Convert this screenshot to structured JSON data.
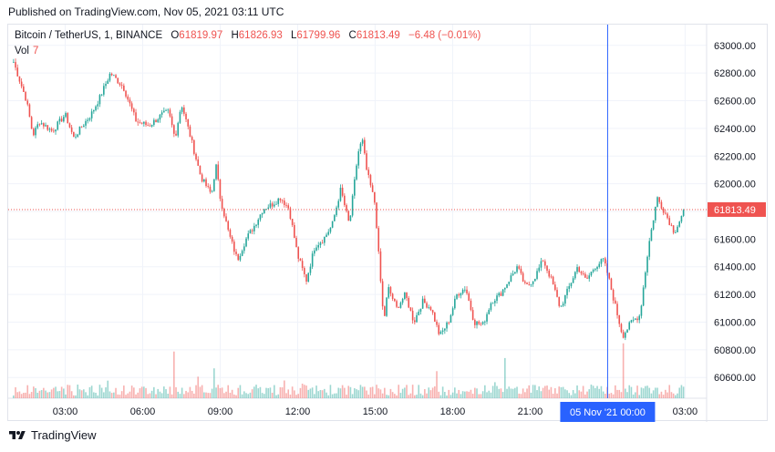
{
  "header": {
    "published": "Published on TradingView.com, Nov 05, 2021 03:11 UTC"
  },
  "legend": {
    "symbol": "Bitcoin / TetherUS, 1, BINANCE",
    "open_label": "O",
    "open": "61819.97",
    "high_label": "H",
    "high": "61826.93",
    "low_label": "L",
    "low": "61799.96",
    "close_label": "C",
    "close": "61813.49",
    "change": "−6.48 (−0.01%)",
    "volume_label": "Vol",
    "volume": "7"
  },
  "footer": {
    "brand": "TradingView"
  },
  "colors": {
    "up": "#26a69a",
    "down": "#ef5350",
    "crosshair": "#2962ff",
    "last_price_line": "#ef5350",
    "grid": "#f0f3fa",
    "axis_text": "#131722"
  },
  "chart_data": {
    "type": "candlestick",
    "ylim": [
      60450,
      63150
    ],
    "y_ticks": [
      "63000.00",
      "62800.00",
      "62600.00",
      "62400.00",
      "62200.00",
      "62000.00",
      "61800.00",
      "61600.00",
      "61400.00",
      "61200.00",
      "61000.00",
      "60800.00",
      "60600.00"
    ],
    "x_ticks": [
      "03:00",
      "06:00",
      "09:00",
      "12:00",
      "15:00",
      "18:00",
      "21:00",
      "00:00",
      "03:00"
    ],
    "crosshair_label": "05 Nov '21   00:00",
    "last_price": 61813.49,
    "last_price_label": "61813.49",
    "close_path": [
      [
        "01:00",
        62880
      ],
      [
        "01:30",
        62600
      ],
      [
        "01:45",
        62350
      ],
      [
        "02:00",
        62450
      ],
      [
        "02:30",
        62380
      ],
      [
        "03:00",
        62500
      ],
      [
        "03:20",
        62330
      ],
      [
        "03:40",
        62420
      ],
      [
        "04:00",
        62500
      ],
      [
        "04:20",
        62620
      ],
      [
        "04:45",
        62800
      ],
      [
        "05:15",
        62700
      ],
      [
        "05:45",
        62450
      ],
      [
        "06:15",
        62420
      ],
      [
        "06:45",
        62500
      ],
      [
        "07:00",
        62520
      ],
      [
        "07:15",
        62330
      ],
      [
        "07:30",
        62580
      ],
      [
        "07:50",
        62350
      ],
      [
        "08:15",
        62050
      ],
      [
        "08:40",
        61920
      ],
      [
        "08:50",
        62140
      ],
      [
        "09:00",
        61900
      ],
      [
        "09:20",
        61640
      ],
      [
        "09:40",
        61450
      ],
      [
        "10:00",
        61600
      ],
      [
        "10:20",
        61700
      ],
      [
        "10:40",
        61820
      ],
      [
        "11:00",
        61850
      ],
      [
        "11:20",
        61900
      ],
      [
        "11:40",
        61820
      ],
      [
        "12:00",
        61480
      ],
      [
        "12:20",
        61300
      ],
      [
        "12:40",
        61550
      ],
      [
        "13:00",
        61600
      ],
      [
        "13:20",
        61700
      ],
      [
        "13:40",
        61960
      ],
      [
        "14:00",
        61700
      ],
      [
        "14:20",
        62220
      ],
      [
        "14:30",
        62320
      ],
      [
        "14:40",
        62100
      ],
      [
        "15:00",
        61850
      ],
      [
        "15:10",
        61400
      ],
      [
        "15:20",
        61000
      ],
      [
        "15:30",
        61250
      ],
      [
        "15:50",
        61100
      ],
      [
        "16:10",
        61200
      ],
      [
        "16:30",
        61000
      ],
      [
        "16:50",
        61150
      ],
      [
        "17:10",
        61100
      ],
      [
        "17:30",
        60900
      ],
      [
        "17:50",
        61000
      ],
      [
        "18:10",
        61200
      ],
      [
        "18:30",
        61250
      ],
      [
        "18:50",
        61000
      ],
      [
        "19:10",
        60980
      ],
      [
        "19:30",
        61150
      ],
      [
        "19:50",
        61200
      ],
      [
        "20:10",
        61300
      ],
      [
        "20:30",
        61400
      ],
      [
        "20:50",
        61250
      ],
      [
        "21:10",
        61320
      ],
      [
        "21:30",
        61450
      ],
      [
        "21:50",
        61300
      ],
      [
        "22:10",
        61100
      ],
      [
        "22:30",
        61250
      ],
      [
        "22:50",
        61400
      ],
      [
        "23:10",
        61300
      ],
      [
        "23:30",
        61400
      ],
      [
        "23:50",
        61450
      ],
      [
        "00:00",
        61350
      ],
      [
        "00:15",
        61150
      ],
      [
        "00:35",
        60900
      ],
      [
        "00:55",
        61000
      ],
      [
        "01:15",
        61050
      ],
      [
        "01:35",
        61550
      ],
      [
        "01:55",
        61900
      ],
      [
        "02:15",
        61780
      ],
      [
        "02:35",
        61650
      ],
      [
        "02:50",
        61750
      ],
      [
        "03:00",
        61813.49
      ]
    ]
  }
}
